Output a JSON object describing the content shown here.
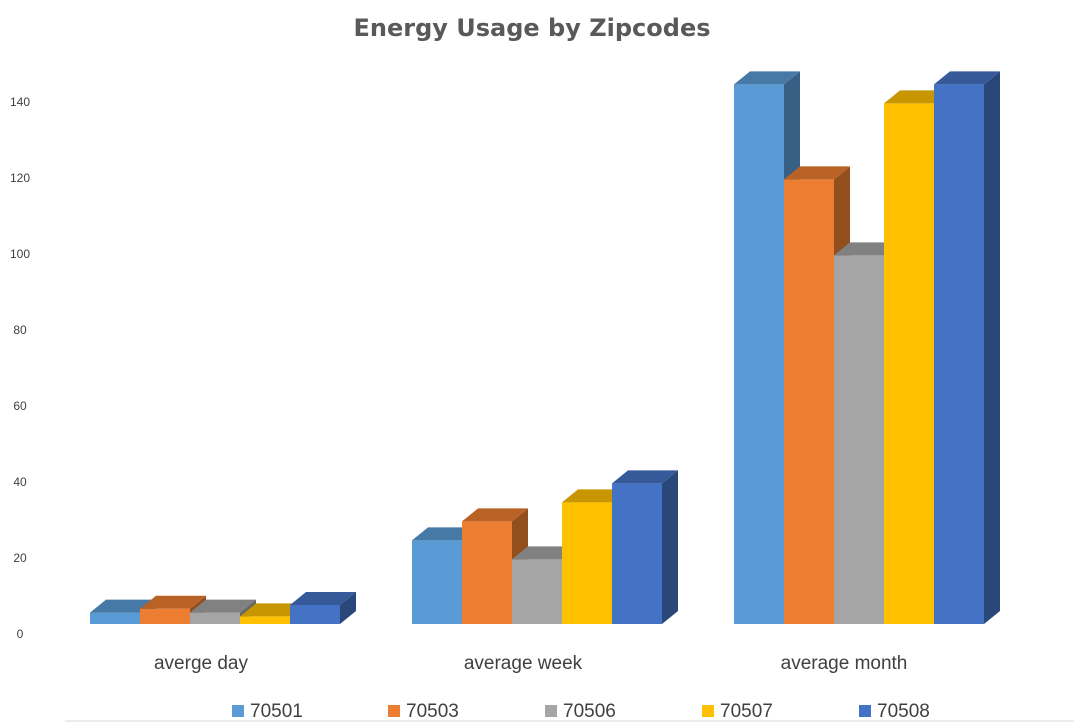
{
  "chart_data": {
    "type": "bar",
    "title": "Energy Usage by Zipcodes",
    "xlabel": "",
    "ylabel": "",
    "categories": [
      "averge day",
      "average week",
      "average month"
    ],
    "yticks": [
      0,
      20,
      40,
      60,
      80,
      100,
      120,
      140
    ],
    "ylim": [
      0,
      140
    ],
    "grid": false,
    "legend_position": "bottom",
    "style": "3d-clustered-column",
    "series": [
      {
        "name": "70501",
        "color": "#5B9BD5",
        "values": [
          3,
          22,
          142
        ]
      },
      {
        "name": "70503",
        "color": "#ED7D31",
        "values": [
          4,
          27,
          117
        ]
      },
      {
        "name": "70506",
        "color": "#A5A5A5",
        "values": [
          3,
          17,
          97
        ]
      },
      {
        "name": "70507",
        "color": "#FFC000",
        "values": [
          2,
          32,
          137
        ]
      },
      {
        "name": "70508",
        "color": "#4472C4",
        "values": [
          5,
          37,
          142
        ]
      }
    ]
  }
}
